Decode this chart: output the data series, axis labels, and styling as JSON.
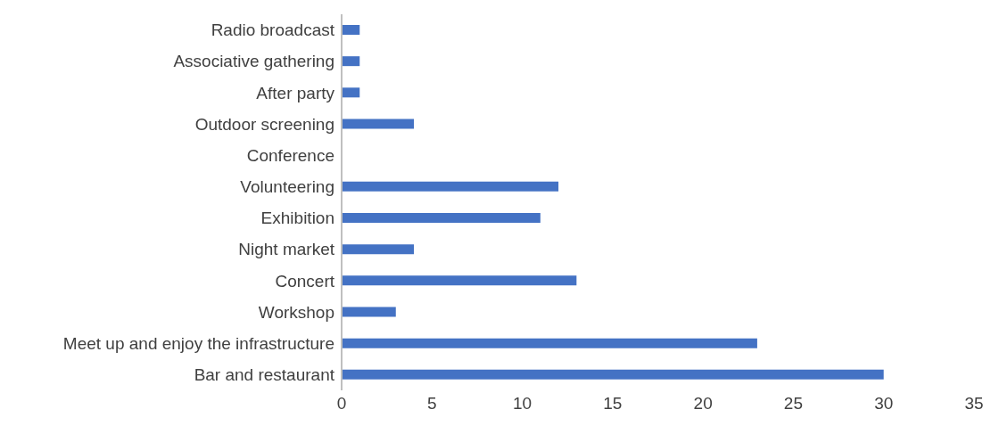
{
  "chart_data": {
    "type": "bar",
    "orientation": "horizontal",
    "categories": [
      "Radio broadcast",
      "Associative gathering",
      "After party",
      "Outdoor screening",
      "Conference",
      "Volunteering",
      "Exhibition",
      "Night market",
      "Concert",
      "Workshop",
      "Meet up and enjoy the infrastructure",
      "Bar and restaurant"
    ],
    "values": [
      1,
      1,
      1,
      4,
      0,
      12,
      11,
      4,
      13,
      3,
      23,
      30
    ],
    "color": "#4472c4",
    "xlim": [
      0,
      35
    ],
    "xticks": [
      0,
      5,
      10,
      15,
      20,
      25,
      30,
      35
    ],
    "grid": false,
    "legend": false
  }
}
